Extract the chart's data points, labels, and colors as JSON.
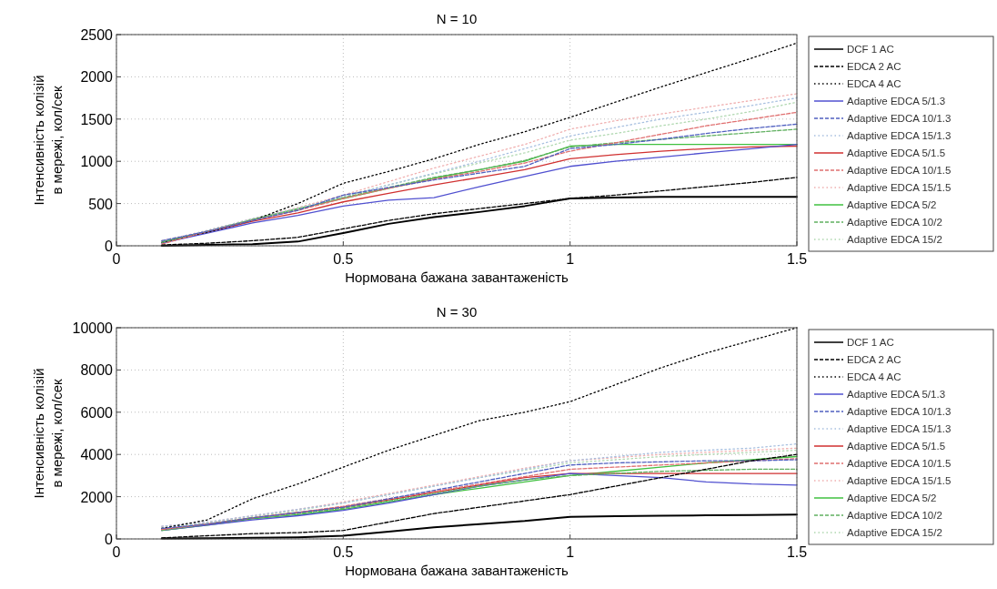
{
  "chart_data": [
    {
      "type": "line",
      "title": "N = 10",
      "xlabel": "Нормована бажана завантаженість",
      "ylabel": "Інтенсивність колізій\nв мережі, кол/сек",
      "x": [
        0.1,
        0.2,
        0.3,
        0.4,
        0.5,
        0.6,
        0.7,
        0.8,
        0.9,
        1.0,
        1.1,
        1.2,
        1.3,
        1.4,
        1.5
      ],
      "xlim": [
        0,
        1.5
      ],
      "xticks": [
        0,
        0.5,
        1,
        1.5
      ],
      "ylim": [
        0,
        2500
      ],
      "yticks": [
        0,
        500,
        1000,
        1500,
        2000,
        2500
      ],
      "grid": true,
      "legend": "right",
      "series": [
        {
          "name": "DCF 1 AC",
          "color": "#000000",
          "line_style": "solid",
          "values": [
            0,
            10,
            20,
            50,
            150,
            260,
            340,
            400,
            470,
            560,
            570,
            580,
            580,
            580,
            580
          ]
        },
        {
          "name": "EDCA 2 AC",
          "color": "#000000",
          "line_style": "dashed",
          "values": [
            10,
            30,
            60,
            100,
            200,
            300,
            380,
            440,
            500,
            560,
            600,
            650,
            700,
            750,
            810
          ]
        },
        {
          "name": "EDCA 4 AC",
          "color": "#000000",
          "line_style": "dotted",
          "values": [
            40,
            160,
            300,
            500,
            740,
            880,
            1030,
            1200,
            1350,
            1520,
            1700,
            1880,
            2050,
            2220,
            2400
          ]
        },
        {
          "name": "Adaptive EDCA 5/1.3",
          "color": "#5050d0",
          "line_style": "solid",
          "values": [
            30,
            150,
            270,
            360,
            470,
            540,
            570,
            700,
            820,
            940,
            1000,
            1050,
            1100,
            1150,
            1200
          ]
        },
        {
          "name": "Adaptive EDCA 10/1.3",
          "color": "#5060c0",
          "line_style": "dashed",
          "values": [
            60,
            170,
            300,
            420,
            600,
            690,
            780,
            860,
            940,
            1150,
            1200,
            1260,
            1330,
            1390,
            1440
          ]
        },
        {
          "name": "Adaptive EDCA 15/1.3",
          "color": "#a8c0e0",
          "line_style": "dotted",
          "values": [
            50,
            180,
            320,
            440,
            580,
            720,
            860,
            1000,
            1150,
            1300,
            1400,
            1500,
            1580,
            1660,
            1750
          ]
        },
        {
          "name": "Adaptive EDCA 5/1.5",
          "color": "#d03030",
          "line_style": "solid",
          "values": [
            40,
            160,
            290,
            390,
            520,
            620,
            720,
            810,
            900,
            1030,
            1080,
            1120,
            1150,
            1170,
            1180
          ]
        },
        {
          "name": "Adaptive EDCA 10/1.5",
          "color": "#e07070",
          "line_style": "dashed",
          "values": [
            20,
            170,
            300,
            420,
            560,
            680,
            790,
            880,
            980,
            1120,
            1220,
            1320,
            1420,
            1500,
            1580
          ]
        },
        {
          "name": "Adaptive EDCA 15/1.5",
          "color": "#f0b0b0",
          "line_style": "dotted",
          "values": [
            60,
            180,
            320,
            450,
            600,
            760,
            920,
            1060,
            1200,
            1380,
            1480,
            1560,
            1640,
            1720,
            1800
          ]
        },
        {
          "name": "Adaptive EDCA 5/2",
          "color": "#40c040",
          "line_style": "solid",
          "values": [
            50,
            170,
            310,
            440,
            560,
            680,
            800,
            900,
            1000,
            1180,
            1200,
            1200,
            1200,
            1200,
            1200
          ]
        },
        {
          "name": "Adaptive EDCA 10/2",
          "color": "#60b060",
          "line_style": "dashed",
          "values": [
            40,
            170,
            310,
            430,
            570,
            690,
            810,
            900,
            1010,
            1170,
            1220,
            1260,
            1300,
            1340,
            1380
          ]
        },
        {
          "name": "Adaptive EDCA 15/2",
          "color": "#b0d8b0",
          "line_style": "dotted",
          "values": [
            50,
            180,
            320,
            450,
            590,
            720,
            850,
            980,
            1100,
            1250,
            1330,
            1420,
            1500,
            1590,
            1700
          ]
        }
      ]
    },
    {
      "type": "line",
      "title": "N = 30",
      "xlabel": "Нормована бажана завантаженість",
      "ylabel": "Інтенсивність колізій\nв мережі, кол/сек",
      "x": [
        0.1,
        0.2,
        0.3,
        0.4,
        0.5,
        0.6,
        0.7,
        0.8,
        0.9,
        1.0,
        1.1,
        1.2,
        1.3,
        1.4,
        1.5
      ],
      "xlim": [
        0,
        1.5
      ],
      "xticks": [
        0,
        0.5,
        1,
        1.5
      ],
      "ylim": [
        0,
        10000
      ],
      "yticks": [
        0,
        2000,
        4000,
        6000,
        8000,
        10000
      ],
      "grid": true,
      "legend": "right",
      "series": [
        {
          "name": "DCF 1 AC",
          "color": "#000000",
          "line_style": "solid",
          "values": [
            20,
            30,
            50,
            80,
            150,
            350,
            550,
            700,
            850,
            1050,
            1080,
            1100,
            1120,
            1130,
            1150
          ]
        },
        {
          "name": "EDCA 2 AC",
          "color": "#000000",
          "line_style": "dashed",
          "values": [
            50,
            150,
            250,
            300,
            400,
            800,
            1200,
            1500,
            1800,
            2100,
            2500,
            2900,
            3300,
            3700,
            4000
          ]
        },
        {
          "name": "EDCA 4 AC",
          "color": "#000000",
          "line_style": "dotted",
          "values": [
            500,
            900,
            1900,
            2600,
            3400,
            4200,
            4900,
            5600,
            6000,
            6500,
            7300,
            8100,
            8800,
            9400,
            10000
          ]
        },
        {
          "name": "Adaptive EDCA 5/1.3",
          "color": "#5050d0",
          "line_style": "solid",
          "values": [
            400,
            650,
            900,
            1100,
            1350,
            1700,
            2100,
            2500,
            2800,
            3100,
            3000,
            2900,
            2700,
            2600,
            2550
          ]
        },
        {
          "name": "Adaptive EDCA 10/1.3",
          "color": "#5060c0",
          "line_style": "dashed",
          "values": [
            500,
            700,
            1000,
            1250,
            1500,
            1900,
            2300,
            2700,
            3100,
            3500,
            3600,
            3650,
            3700,
            3700,
            3750
          ]
        },
        {
          "name": "Adaptive EDCA 15/1.3",
          "color": "#a8c0e0",
          "line_style": "dotted",
          "values": [
            600,
            800,
            1100,
            1400,
            1700,
            2100,
            2500,
            2900,
            3300,
            3700,
            3900,
            4100,
            4200,
            4300,
            4500
          ]
        },
        {
          "name": "Adaptive EDCA 5/1.5",
          "color": "#d03030",
          "line_style": "solid",
          "values": [
            450,
            700,
            1000,
            1250,
            1500,
            1850,
            2200,
            2550,
            2900,
            3100,
            3100,
            3100,
            3100,
            3100,
            3100
          ]
        },
        {
          "name": "Adaptive EDCA 10/1.5",
          "color": "#e07070",
          "line_style": "dashed",
          "values": [
            450,
            700,
            1000,
            1250,
            1550,
            1900,
            2250,
            2600,
            2950,
            3300,
            3400,
            3500,
            3600,
            3700,
            3800
          ]
        },
        {
          "name": "Adaptive EDCA 15/1.5",
          "color": "#f0b0b0",
          "line_style": "dotted",
          "values": [
            600,
            800,
            1100,
            1400,
            1750,
            2150,
            2550,
            2950,
            3350,
            3700,
            3850,
            4000,
            4100,
            4200,
            4300
          ]
        },
        {
          "name": "Adaptive EDCA 5/2",
          "color": "#40c040",
          "line_style": "solid",
          "values": [
            400,
            650,
            950,
            1150,
            1400,
            1750,
            2100,
            2400,
            2700,
            3000,
            3200,
            3400,
            3600,
            3750,
            3900
          ]
        },
        {
          "name": "Adaptive EDCA 10/2",
          "color": "#60b060",
          "line_style": "dashed",
          "values": [
            400,
            700,
            1000,
            1200,
            1450,
            1800,
            2150,
            2500,
            2800,
            3000,
            3100,
            3200,
            3250,
            3300,
            3300
          ]
        },
        {
          "name": "Adaptive EDCA 15/2",
          "color": "#b0d8b0",
          "line_style": "dotted",
          "values": [
            550,
            750,
            1050,
            1350,
            1700,
            2100,
            2500,
            2900,
            3250,
            3600,
            3750,
            3900,
            4000,
            4100,
            4200
          ]
        }
      ]
    }
  ]
}
